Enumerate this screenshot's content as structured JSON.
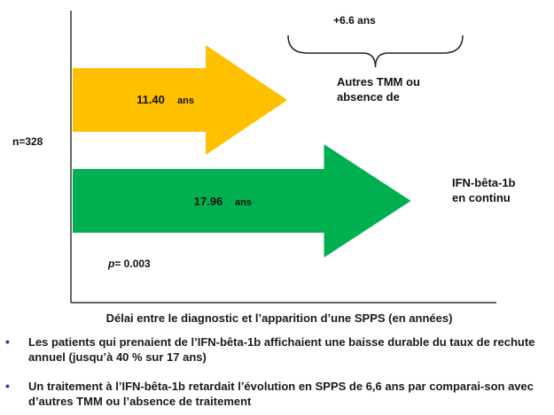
{
  "chart_data": {
    "type": "bar",
    "orientation": "horizontal",
    "categories": [
      "Autres TMM ou absence de",
      "IFN-bêta-1b en continu"
    ],
    "values": [
      11.4,
      17.96
    ],
    "value_labels": [
      "11.40",
      "17.96"
    ],
    "value_unit": "ans",
    "colors": [
      "#FFC000",
      "#00B050"
    ],
    "xlabel": "Délai entre le diagnostic et l’apparition d’une SPPS (en années)",
    "xlim": [
      0,
      22.5
    ],
    "n_label": "n=328",
    "p_symbol": "p",
    "p_value": "= 0.003",
    "difference_label": "+6.6 ans"
  },
  "bullets": [
    "Les patients qui prenaient de l’IFN-bêta-1b affichaient une baisse durable du taux de rechute annuel (jusqu’à 40 % sur 17 ans)",
    "Un traitement à l’IFN-bêta-1b retardait l’évolution en SPPS de 6,6 ans par comparai-son avec d’autres TMM ou l’absence de traitement"
  ],
  "bullet_symbol": "•"
}
